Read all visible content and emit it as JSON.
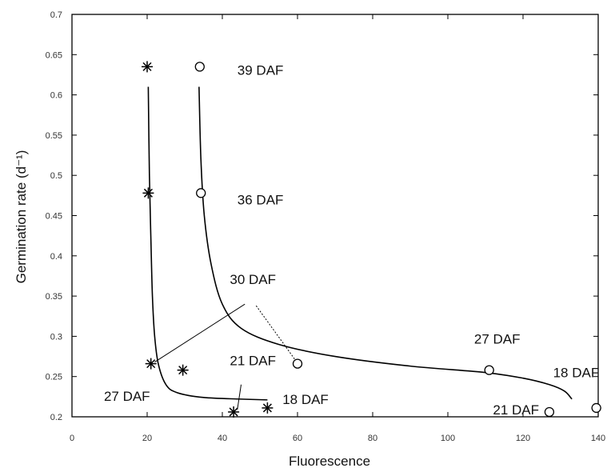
{
  "chart_data": {
    "type": "scatter",
    "title": "",
    "xlabel": "Fluorescence",
    "ylabel": "Germination rate (d⁻¹)",
    "xlim": [
      0,
      140
    ],
    "ylim": [
      0.2,
      0.7
    ],
    "x_ticks": [
      0,
      20,
      40,
      60,
      80,
      100,
      120,
      140
    ],
    "x_tick_labels": [
      "0",
      "20",
      "40",
      "60",
      "80",
      "100",
      "120",
      "140"
    ],
    "y_ticks": [
      0.2,
      0.25,
      0.3,
      0.35,
      0.4,
      0.45,
      0.5,
      0.55,
      0.6,
      0.65,
      0.7
    ],
    "y_tick_labels": [
      "0.2",
      "0.25",
      "0.3",
      "0.35",
      "0.4",
      "0.45",
      "0.5",
      "0.55",
      "0.6",
      "0.65",
      "0.7"
    ],
    "grid": false,
    "series": [
      {
        "marker": "asterisk",
        "points": [
          {
            "x": 20,
            "y": 0.635
          },
          {
            "x": 20.3,
            "y": 0.478
          },
          {
            "x": 21.0,
            "y": 0.266
          },
          {
            "x": 29.5,
            "y": 0.258
          },
          {
            "x": 43.0,
            "y": 0.206
          },
          {
            "x": 52.0,
            "y": 0.211
          }
        ],
        "fit": [
          [
            20.3,
            0.61
          ],
          [
            20.6,
            0.5
          ],
          [
            21.0,
            0.42
          ],
          [
            21.4,
            0.35
          ],
          [
            22.0,
            0.3
          ],
          [
            23.0,
            0.265
          ],
          [
            25.0,
            0.24
          ],
          [
            28.0,
            0.23
          ],
          [
            35.0,
            0.224
          ],
          [
            45.0,
            0.222
          ],
          [
            52.0,
            0.221
          ]
        ]
      },
      {
        "marker": "circle",
        "points": [
          {
            "x": 34.0,
            "y": 0.635
          },
          {
            "x": 34.3,
            "y": 0.478
          },
          {
            "x": 60.0,
            "y": 0.266
          },
          {
            "x": 111.0,
            "y": 0.258
          },
          {
            "x": 127.0,
            "y": 0.206
          },
          {
            "x": 139.5,
            "y": 0.211
          }
        ],
        "fit": [
          [
            33.8,
            0.61
          ],
          [
            34.3,
            0.52
          ],
          [
            35.2,
            0.45
          ],
          [
            37.0,
            0.39
          ],
          [
            40.0,
            0.34
          ],
          [
            45.0,
            0.31
          ],
          [
            55.0,
            0.29
          ],
          [
            70.0,
            0.275
          ],
          [
            90.0,
            0.263
          ],
          [
            110.0,
            0.255
          ],
          [
            120.0,
            0.248
          ],
          [
            127.0,
            0.24
          ],
          [
            131.0,
            0.232
          ],
          [
            133.0,
            0.222
          ]
        ]
      }
    ],
    "annotations": [
      {
        "text": "39 DAF",
        "x": 44,
        "y": 0.625
      },
      {
        "text": "36 DAF",
        "x": 44,
        "y": 0.464
      },
      {
        "text": "30 DAF",
        "x": 42,
        "y": 0.365
      },
      {
        "text": "27 DAF",
        "x": 107,
        "y": 0.291
      },
      {
        "text": "21 DAF",
        "x": 42,
        "y": 0.264
      },
      {
        "text": "18 DAF",
        "x": 128,
        "y": 0.249
      },
      {
        "text": "27 DAF",
        "x": 8.5,
        "y": 0.22
      },
      {
        "text": "18 DAF",
        "x": 56,
        "y": 0.216
      },
      {
        "text": "21 DAF",
        "x": 112,
        "y": 0.203
      }
    ],
    "leader_lines": [
      {
        "from": [
          22.0,
          0.268
        ],
        "to": [
          46.0,
          0.34
        ],
        "dashed": false
      },
      {
        "from": [
          49.0,
          0.338
        ],
        "to": [
          59.5,
          0.27
        ],
        "dashed": true
      },
      {
        "from": [
          44.0,
          0.209
        ],
        "to": [
          45.0,
          0.24
        ],
        "dashed": false
      }
    ]
  }
}
